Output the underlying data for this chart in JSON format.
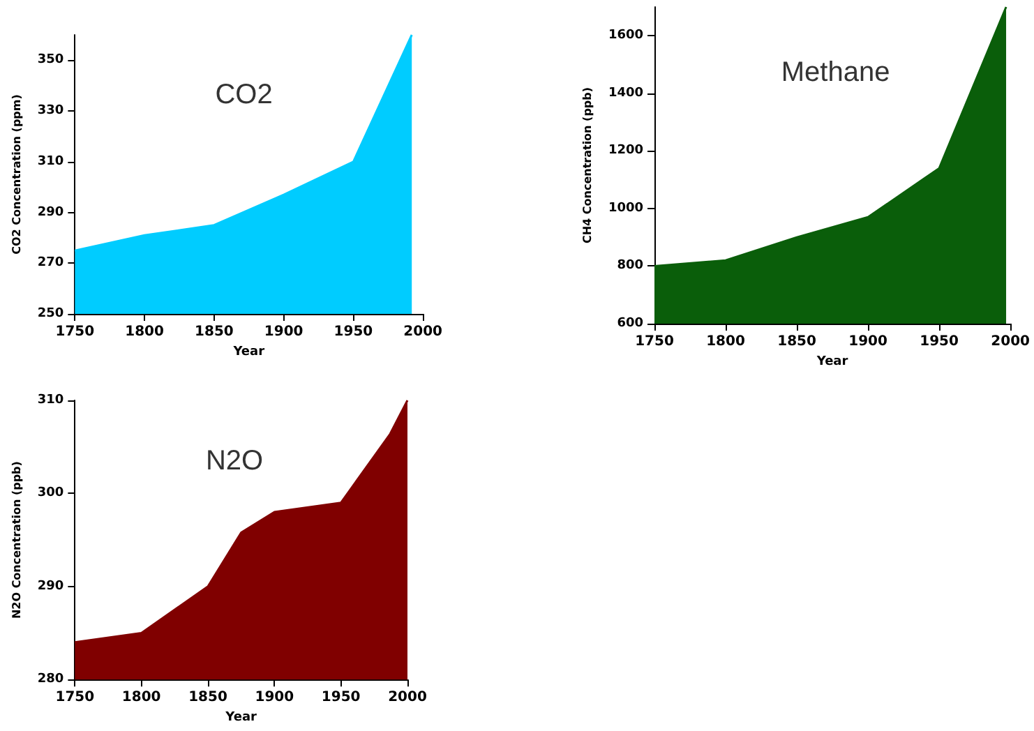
{
  "chart_data": [
    {
      "type": "area",
      "title": "CO2",
      "xlabel": "Year",
      "ylabel": "CO2 Concentration (ppm)",
      "x": [
        1750,
        1800,
        1850,
        1900,
        1950,
        1992
      ],
      "values": [
        275,
        281,
        285,
        297,
        310,
        360
      ],
      "color": "#00ccff",
      "xlim": [
        1750,
        2000
      ],
      "xticks": [
        1750,
        1800,
        1850,
        1900,
        1950,
        2000
      ],
      "ylim": [
        250,
        360
      ],
      "yticks": [
        250,
        270,
        290,
        310,
        330,
        350
      ],
      "grid": false,
      "marker": "none"
    },
    {
      "type": "area",
      "title": "Methane",
      "xlabel": "Year",
      "ylabel": "CH4 Concentration (ppb)",
      "x": [
        1750,
        1800,
        1850,
        1900,
        1950,
        1997
      ],
      "values": [
        800,
        820,
        900,
        970,
        1140,
        1700
      ],
      "color": "#0a5e0a",
      "xlim": [
        1750,
        2000
      ],
      "xticks": [
        1750,
        1800,
        1850,
        1900,
        1950,
        2000
      ],
      "ylim": [
        600,
        1700
      ],
      "yticks": [
        600,
        800,
        1000,
        1200,
        1400,
        1600
      ],
      "grid": false,
      "marker": "none"
    },
    {
      "type": "area",
      "title": "N2O",
      "xlabel": "Year",
      "ylabel": "N2O Concentration (ppb)",
      "x": [
        1750,
        1800,
        1850,
        1875,
        1900,
        1950,
        1955,
        1987,
        2000
      ],
      "values": [
        284,
        285,
        290,
        295.8,
        298,
        299,
        300,
        306.4,
        310
      ],
      "color": "#800000",
      "xlim": [
        1750,
        2000
      ],
      "xticks": [
        1750,
        1800,
        1850,
        1900,
        1950,
        2000
      ],
      "ylim": [
        280,
        310
      ],
      "yticks": [
        280,
        290,
        300,
        310
      ],
      "grid": false,
      "marker": "none"
    }
  ]
}
